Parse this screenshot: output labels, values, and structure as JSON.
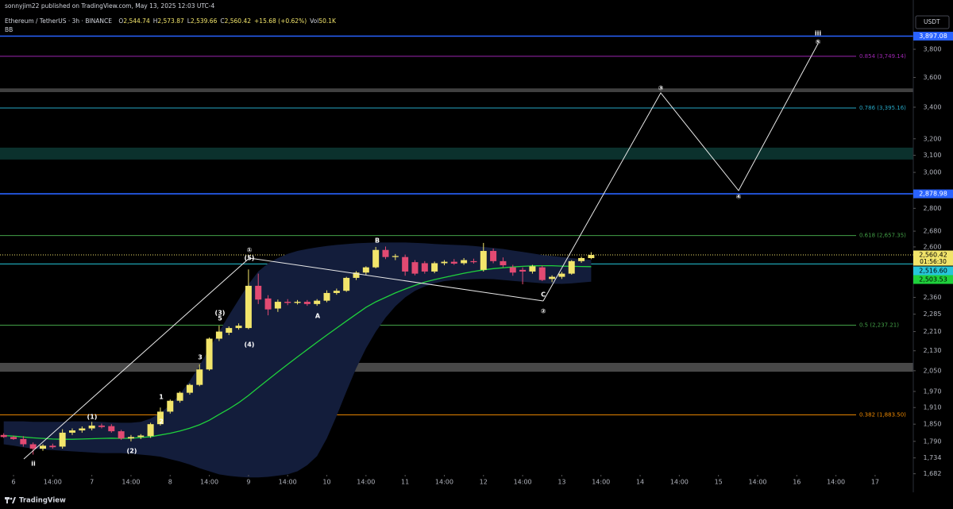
{
  "header": {
    "publisher": "sonnyjim22 published on TradingView.com, May 13, 2025 12:03 UTC-4",
    "symbol": "Ethereum / TetherUS · 3h · BINANCE",
    "quote": [
      {
        "key": "O",
        "value": "2,544.74"
      },
      {
        "key": "H",
        "value": "2,573.87"
      },
      {
        "key": "L",
        "value": "2,539.66"
      },
      {
        "key": "C",
        "value": "2,560.42"
      }
    ],
    "change": "+15.68 (+0.62%)",
    "volume_key": "Vol",
    "volume": "50.1K",
    "indicator": "BB",
    "currency": "USDT"
  },
  "footer": {
    "brand": "TradingView"
  },
  "chart_data": {
    "type": "candlestick",
    "log_scale": true,
    "grid": false,
    "up_color": "#f2e56b",
    "down_color": "#e24a72",
    "xlim": [
      -2.14,
      277.7
    ],
    "xticks": [
      {
        "value": 2,
        "label": "6"
      },
      {
        "value": 14,
        "label": "14:00"
      },
      {
        "value": 26,
        "label": "7"
      },
      {
        "value": 38,
        "label": "14:00"
      },
      {
        "value": 50,
        "label": "8"
      },
      {
        "value": 62,
        "label": "14:00"
      },
      {
        "value": 74,
        "label": "9"
      },
      {
        "value": 86,
        "label": "14:00"
      },
      {
        "value": 98,
        "label": "10"
      },
      {
        "value": 110,
        "label": "14:00"
      },
      {
        "value": 122,
        "label": "11"
      },
      {
        "value": 134,
        "label": "14:00"
      },
      {
        "value": 146,
        "label": "12"
      },
      {
        "value": 158,
        "label": "14:00"
      },
      {
        "value": 170,
        "label": "13"
      },
      {
        "value": 182,
        "label": "14:00"
      },
      {
        "value": 194,
        "label": "14"
      },
      {
        "value": 206,
        "label": "14:00"
      },
      {
        "value": 218,
        "label": "15"
      },
      {
        "value": 230,
        "label": "14:00"
      },
      {
        "value": 242,
        "label": "16"
      },
      {
        "value": 254,
        "label": "14:00"
      },
      {
        "value": 266,
        "label": "17"
      }
    ],
    "ylim": [
      1643,
      4064
    ],
    "yticks": [
      {
        "value": 3800,
        "label": "3,800"
      },
      {
        "value": 3600,
        "label": "3,600"
      },
      {
        "value": 3400,
        "label": "3,400"
      },
      {
        "value": 3200,
        "label": "3,200"
      },
      {
        "value": 3100,
        "label": "3,100"
      },
      {
        "value": 3000,
        "label": "3,000"
      },
      {
        "value": 2800,
        "label": "2,800"
      },
      {
        "value": 2680,
        "label": "2,680"
      },
      {
        "value": 2600,
        "label": "2,600"
      },
      {
        "value": 2360,
        "label": "2,360"
      },
      {
        "value": 2285,
        "label": "2,285"
      },
      {
        "value": 2210,
        "label": "2,210"
      },
      {
        "value": 2130,
        "label": "2,130"
      },
      {
        "value": 2050,
        "label": "2,050"
      },
      {
        "value": 1970,
        "label": "1,970"
      },
      {
        "value": 1910,
        "label": "1,910"
      },
      {
        "value": 1850,
        "label": "1,850"
      },
      {
        "value": 1790,
        "label": "1,790"
      },
      {
        "value": 1734,
        "label": "1,734"
      },
      {
        "value": 1682,
        "label": "1,682"
      }
    ],
    "x": [
      -1,
      2,
      5,
      8,
      11,
      14,
      17,
      20,
      23,
      26,
      29,
      32,
      35,
      38,
      41,
      44,
      47,
      50,
      53,
      56,
      59,
      62,
      65,
      68,
      71,
      74,
      77,
      80,
      83,
      86,
      89,
      92,
      95,
      98,
      101,
      104,
      107,
      110,
      113,
      116,
      119,
      122,
      125,
      128,
      131,
      134,
      137,
      140,
      143,
      146,
      149,
      152,
      155,
      158,
      161,
      164,
      167,
      170,
      173,
      176,
      179
    ],
    "open": [
      1812,
      1805,
      1798,
      1780,
      1765,
      1775,
      1772,
      1820,
      1828,
      1835,
      1845,
      1843,
      1825,
      1800,
      1805,
      1808,
      1850,
      1895,
      1935,
      1965,
      1995,
      2055,
      2180,
      2205,
      2225,
      2225,
      2413,
      2355,
      2310,
      2340,
      2335,
      2340,
      2330,
      2345,
      2380,
      2390,
      2450,
      2475,
      2500,
      2585,
      2550,
      2550,
      2525,
      2520,
      2480,
      2520,
      2527,
      2520,
      2530,
      2488,
      2580,
      2530,
      2500,
      2488,
      2480,
      2500,
      2445,
      2455,
      2470,
      2530,
      2544.74
    ],
    "high": [
      1818,
      1810,
      1808,
      1786,
      1780,
      1782,
      1832,
      1835,
      1842,
      1858,
      1852,
      1850,
      1830,
      1812,
      1815,
      1855,
      1910,
      1940,
      1970,
      2000,
      2075,
      2185,
      2235,
      2232,
      2245,
      2490,
      2470,
      2370,
      2350,
      2352,
      2348,
      2348,
      2352,
      2392,
      2400,
      2455,
      2482,
      2505,
      2600,
      2602,
      2565,
      2562,
      2535,
      2530,
      2528,
      2535,
      2540,
      2545,
      2542,
      2620,
      2592,
      2548,
      2512,
      2500,
      2512,
      2508,
      2462,
      2478,
      2535,
      2552,
      2573.87
    ],
    "low": [
      1802,
      1795,
      1772,
      1745,
      1758,
      1765,
      1765,
      1812,
      1820,
      1828,
      1835,
      1820,
      1795,
      1790,
      1798,
      1802,
      1845,
      1888,
      1928,
      1958,
      1990,
      2050,
      2170,
      2195,
      2218,
      2220,
      2330,
      2280,
      2295,
      2325,
      2328,
      2322,
      2322,
      2338,
      2372,
      2385,
      2440,
      2465,
      2495,
      2540,
      2535,
      2460,
      2462,
      2470,
      2472,
      2510,
      2512,
      2512,
      2518,
      2480,
      2520,
      2500,
      2460,
      2420,
      2470,
      2435,
      2430,
      2445,
      2465,
      2522,
      2539.66
    ],
    "close": [
      1805,
      1798,
      1780,
      1765,
      1775,
      1770,
      1820,
      1828,
      1835,
      1845,
      1840,
      1825,
      1800,
      1805,
      1810,
      1850,
      1895,
      1935,
      1965,
      1995,
      2055,
      2180,
      2210,
      2225,
      2235,
      2413,
      2350,
      2306,
      2340,
      2335,
      2340,
      2330,
      2345,
      2380,
      2390,
      2450,
      2475,
      2500,
      2585,
      2550,
      2555,
      2480,
      2470,
      2480,
      2520,
      2527,
      2518,
      2535,
      2525,
      2580,
      2530,
      2510,
      2475,
      2480,
      2505,
      2440,
      2455,
      2470,
      2530,
      2545,
      2560.42
    ],
    "bb_fill": "#131d3b",
    "bb_middle_color": "#1fd13c",
    "bb_upper": [
      1860,
      1860,
      1860,
      1858,
      1858,
      1858,
      1858,
      1860,
      1860,
      1860,
      1858,
      1856,
      1855,
      1855,
      1858,
      1870,
      1890,
      1920,
      1960,
      2010,
      2070,
      2140,
      2210,
      2280,
      2350,
      2420,
      2480,
      2520,
      2545,
      2565,
      2580,
      2590,
      2598,
      2605,
      2610,
      2614,
      2618,
      2620,
      2622,
      2622,
      2622,
      2622,
      2620,
      2618,
      2615,
      2612,
      2610,
      2608,
      2605,
      2600,
      2595,
      2590,
      2582,
      2575,
      2568,
      2560,
      2555,
      2550,
      2545,
      2540,
      2536
    ],
    "bb_middle": [
      1810,
      1808,
      1805,
      1802,
      1800,
      1798,
      1797,
      1797,
      1798,
      1799,
      1800,
      1801,
      1800,
      1801,
      1803,
      1806,
      1812,
      1818,
      1826,
      1836,
      1848,
      1864,
      1885,
      1905,
      1928,
      1955,
      1985,
      2015,
      2045,
      2075,
      2105,
      2135,
      2165,
      2195,
      2225,
      2255,
      2285,
      2315,
      2340,
      2360,
      2380,
      2398,
      2415,
      2430,
      2442,
      2452,
      2462,
      2472,
      2480,
      2488,
      2494,
      2498,
      2502,
      2505,
      2507,
      2508,
      2508,
      2506,
      2505,
      2504,
      2503.53
    ],
    "bb_lower": [
      1780,
      1775,
      1770,
      1765,
      1762,
      1760,
      1758,
      1756,
      1754,
      1752,
      1750,
      1750,
      1750,
      1748,
      1745,
      1742,
      1738,
      1730,
      1722,
      1712,
      1700,
      1690,
      1680,
      1675,
      1672,
      1670,
      1670,
      1672,
      1676,
      1680,
      1690,
      1710,
      1740,
      1800,
      1880,
      1970,
      2060,
      2140,
      2210,
      2270,
      2320,
      2360,
      2390,
      2410,
      2425,
      2435,
      2440,
      2442,
      2444,
      2445,
      2444,
      2440,
      2436,
      2432,
      2428,
      2425,
      2423,
      2422,
      2424,
      2428,
      2432
    ],
    "zones": [
      {
        "from": 3500,
        "to": 3525,
        "color": "#4b4b4b"
      },
      {
        "from": 3075,
        "to": 3146,
        "color": "#0d3935"
      },
      {
        "from": 2046,
        "to": 2081,
        "color": "#555555"
      }
    ],
    "levels": [
      {
        "value": 3749.14,
        "label": "0.854 (3,749.14)",
        "color": "#9c27b0"
      },
      {
        "value": 3395.16,
        "label": "0.786 (3,395.16)",
        "color": "#26a6c4"
      },
      {
        "value": 2657.35,
        "label": "0.618 (2,657.35)",
        "color": "#43a047"
      },
      {
        "value": 2237.21,
        "label": "0.5 (2,237.21)",
        "color": "#43a047"
      },
      {
        "value": 1883.5,
        "label": "0.382 (1,883.50)",
        "color": "#f08a00"
      }
    ],
    "price_tags": [
      {
        "value": 3897.08,
        "label": "3,897.08",
        "color": "#2962ff",
        "text_color": "#ffffff",
        "line_style": "solid"
      },
      {
        "value": 2878.98,
        "label": "2,878.98",
        "color": "#2962ff",
        "text_color": "#ffffff",
        "line_style": "solid"
      },
      {
        "value": 2560.42,
        "label": "2,560.42",
        "color": "#f2e56b",
        "text_color": "#000000",
        "line_style": "dotted",
        "countdown": "01:56:30"
      },
      {
        "value": 2516.6,
        "label": "2,516.60",
        "color": "#26c6da",
        "text_color": "#000000",
        "line_style": "thin"
      },
      {
        "value": 2503.53,
        "label": "2,503.53",
        "color": "#1fd13c",
        "text_color": "#000000",
        "line_style": "none"
      }
    ],
    "annotations": [
      "ii",
      "(1)",
      "(2)",
      "1",
      "2",
      "3",
      "(3)",
      "5",
      "(4)",
      "①",
      "(5)",
      "A",
      "B",
      "C",
      "②",
      "③",
      "④",
      "⑤",
      "iii"
    ]
  }
}
